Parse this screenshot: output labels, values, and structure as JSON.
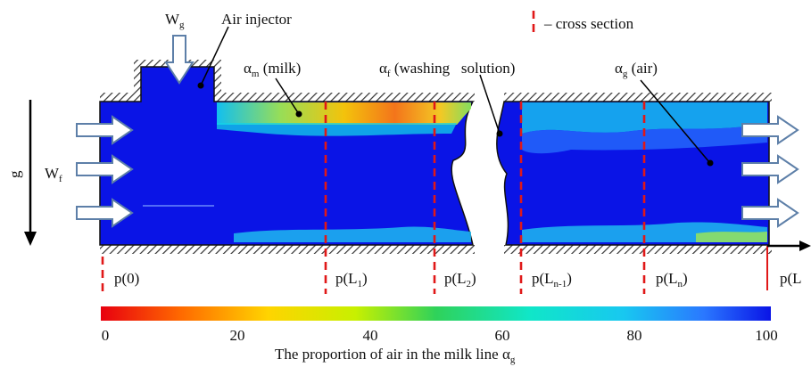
{
  "labels": {
    "air_gas_main": "W",
    "air_gas_sub": "g",
    "air_injector": "Air injector",
    "cross_section_legend": "– cross section",
    "alpha_symbol": "α",
    "milk_sub": "m",
    "milk_text": " (milk)",
    "washing_sub": "f",
    "washing_text": " (washing   solution)",
    "air_sub": "g",
    "air_text": " (air)",
    "flow_main": "W",
    "flow_sub": "f",
    "gravity": "g"
  },
  "pressure_points": [
    {
      "main": "p(0)",
      "sub": "",
      "tail": ""
    },
    {
      "main": "p(L",
      "sub": "1",
      "tail": ")"
    },
    {
      "main": "p(L",
      "sub": "2",
      "tail": ")"
    },
    {
      "main": "p(L",
      "sub": "n-1",
      "tail": ")"
    },
    {
      "main": "p(L",
      "sub": "n",
      "tail": ")"
    },
    {
      "main": "p(L",
      "sub": "",
      "tail": ""
    }
  ],
  "colorbar": {
    "ticks": [
      "0",
      "20",
      "40",
      "60",
      "80",
      "100"
    ],
    "title_main": "The proportion of air in the milk line α",
    "title_sub": "g",
    "min": 0,
    "max": 100
  },
  "colors": {
    "pipe_fill": "#0a14e6",
    "cross_section": "#e01818",
    "arrow_fill": "#ffffff",
    "arrow_stroke": "#5d7fa8"
  }
}
